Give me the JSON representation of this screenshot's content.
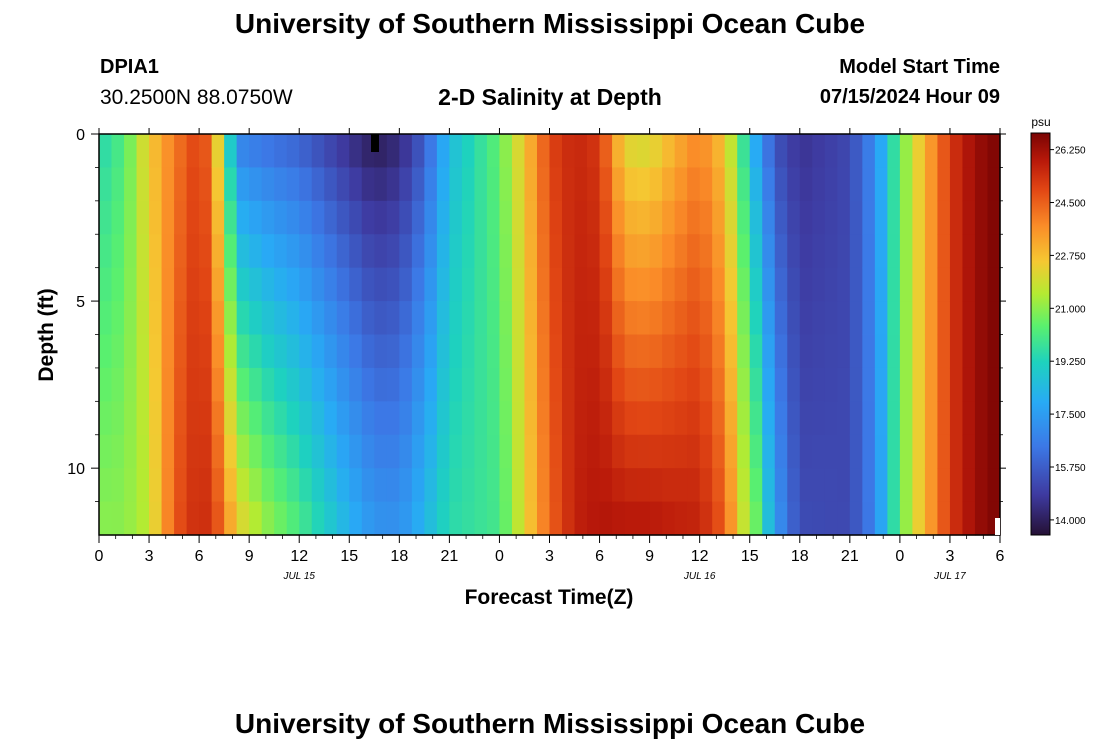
{
  "header": {
    "title": "University of Southern Mississippi Ocean Cube",
    "station": "DPIA1",
    "coordinates": "30.2500N  88.0750W",
    "subtitle": "2-D Salinity at Depth",
    "model_start_label": "Model Start Time",
    "model_start_value": "07/15/2024 Hour 09"
  },
  "footer": {
    "title": "University of Southern Mississippi Ocean Cube"
  },
  "chart_data": {
    "type": "heatmap",
    "title": "2-D Salinity at Depth",
    "xlabel": "Forecast Time(Z)",
    "ylabel": "Depth (ft)",
    "x_range_hours": [
      0,
      54
    ],
    "y_range_ft": [
      0,
      12
    ],
    "x_ticks": [
      {
        "hour": 0,
        "label": "0"
      },
      {
        "hour": 3,
        "label": "3"
      },
      {
        "hour": 6,
        "label": "6"
      },
      {
        "hour": 9,
        "label": "9"
      },
      {
        "hour": 12,
        "label": "12"
      },
      {
        "hour": 15,
        "label": "15"
      },
      {
        "hour": 18,
        "label": "18"
      },
      {
        "hour": 21,
        "label": "21"
      },
      {
        "hour": 24,
        "label": "0"
      },
      {
        "hour": 27,
        "label": "3"
      },
      {
        "hour": 30,
        "label": "6"
      },
      {
        "hour": 33,
        "label": "9"
      },
      {
        "hour": 36,
        "label": "12"
      },
      {
        "hour": 39,
        "label": "15"
      },
      {
        "hour": 42,
        "label": "18"
      },
      {
        "hour": 45,
        "label": "21"
      },
      {
        "hour": 48,
        "label": "0"
      },
      {
        "hour": 51,
        "label": "3"
      },
      {
        "hour": 54,
        "label": "6"
      }
    ],
    "date_labels": [
      {
        "hour": 12,
        "label": "JUL 15"
      },
      {
        "hour": 36,
        "label": "JUL 16"
      },
      {
        "hour": 51,
        "label": "JUL 17"
      }
    ],
    "y_ticks": [
      {
        "ft": 0,
        "label": "0"
      },
      {
        "ft": 5,
        "label": "5"
      },
      {
        "ft": 10,
        "label": "10"
      }
    ],
    "colorbar": {
      "unit": "psu",
      "min": 13.5,
      "max": 26.8,
      "ticks": [
        "14.000",
        "15.750",
        "17.500",
        "19.250",
        "21.000",
        "22.750",
        "24.500",
        "26.250"
      ],
      "tick_values": [
        14.0,
        15.75,
        17.5,
        19.25,
        21.0,
        22.75,
        24.5,
        26.25
      ]
    },
    "time_keys": [
      {
        "hour": 0,
        "surface": 19.3,
        "bottom": 21.0
      },
      {
        "hour": 1.5,
        "surface": 20.2,
        "bottom": 21.0
      },
      {
        "hour": 3,
        "surface": 22.5,
        "bottom": 21.6
      },
      {
        "hour": 4.5,
        "surface": 24.0,
        "bottom": 24.6
      },
      {
        "hour": 6,
        "surface": 25.1,
        "bottom": 25.6
      },
      {
        "hour": 6.8,
        "surface": 24.0,
        "bottom": 25.2
      },
      {
        "hour": 7.5,
        "surface": 20.0,
        "bottom": 24.2
      },
      {
        "hour": 8.0,
        "surface": 18.2,
        "bottom": 23.0
      },
      {
        "hour": 8.5,
        "surface": 16.5,
        "bottom": 22.3
      },
      {
        "hour": 10,
        "surface": 16.1,
        "bottom": 21.2
      },
      {
        "hour": 12,
        "surface": 15.7,
        "bottom": 20.2
      },
      {
        "hour": 15,
        "surface": 14.4,
        "bottom": 18.2
      },
      {
        "hour": 16.5,
        "surface": 13.8,
        "bottom": 17.3
      },
      {
        "hour": 18,
        "surface": 14.2,
        "bottom": 17.2
      },
      {
        "hour": 19.5,
        "surface": 15.6,
        "bottom": 18.3
      },
      {
        "hour": 21,
        "surface": 18.4,
        "bottom": 19.5
      },
      {
        "hour": 24,
        "surface": 20.5,
        "bottom": 20.0
      },
      {
        "hour": 25.5,
        "surface": 22.6,
        "bottom": 22.2
      },
      {
        "hour": 27,
        "surface": 25.0,
        "bottom": 24.4
      },
      {
        "hour": 28.5,
        "surface": 25.6,
        "bottom": 25.7
      },
      {
        "hour": 30,
        "surface": 25.2,
        "bottom": 26.0
      },
      {
        "hour": 31.5,
        "surface": 22.0,
        "bottom": 26.0
      },
      {
        "hour": 33,
        "surface": 21.8,
        "bottom": 26.0
      },
      {
        "hour": 34.5,
        "surface": 22.9,
        "bottom": 25.8
      },
      {
        "hour": 36,
        "surface": 23.8,
        "bottom": 25.7
      },
      {
        "hour": 37.5,
        "surface": 22.5,
        "bottom": 24.6
      },
      {
        "hour": 38.5,
        "surface": 20.0,
        "bottom": 22.0
      },
      {
        "hour": 39.5,
        "surface": 17.4,
        "bottom": 20.5
      },
      {
        "hour": 40.5,
        "surface": 15.4,
        "bottom": 17.5
      },
      {
        "hour": 42,
        "surface": 14.6,
        "bottom": 15.3
      },
      {
        "hour": 45,
        "surface": 15.2,
        "bottom": 15.2
      },
      {
        "hour": 46.5,
        "surface": 17.0,
        "bottom": 16.8
      },
      {
        "hour": 48,
        "surface": 20.5,
        "bottom": 20.5
      },
      {
        "hour": 49.5,
        "surface": 23.0,
        "bottom": 23.0
      },
      {
        "hour": 51,
        "surface": 25.2,
        "bottom": 25.2
      },
      {
        "hour": 52.5,
        "surface": 26.3,
        "bottom": 26.3
      },
      {
        "hour": 54,
        "surface": 26.8,
        "bottom": 26.8
      }
    ]
  }
}
